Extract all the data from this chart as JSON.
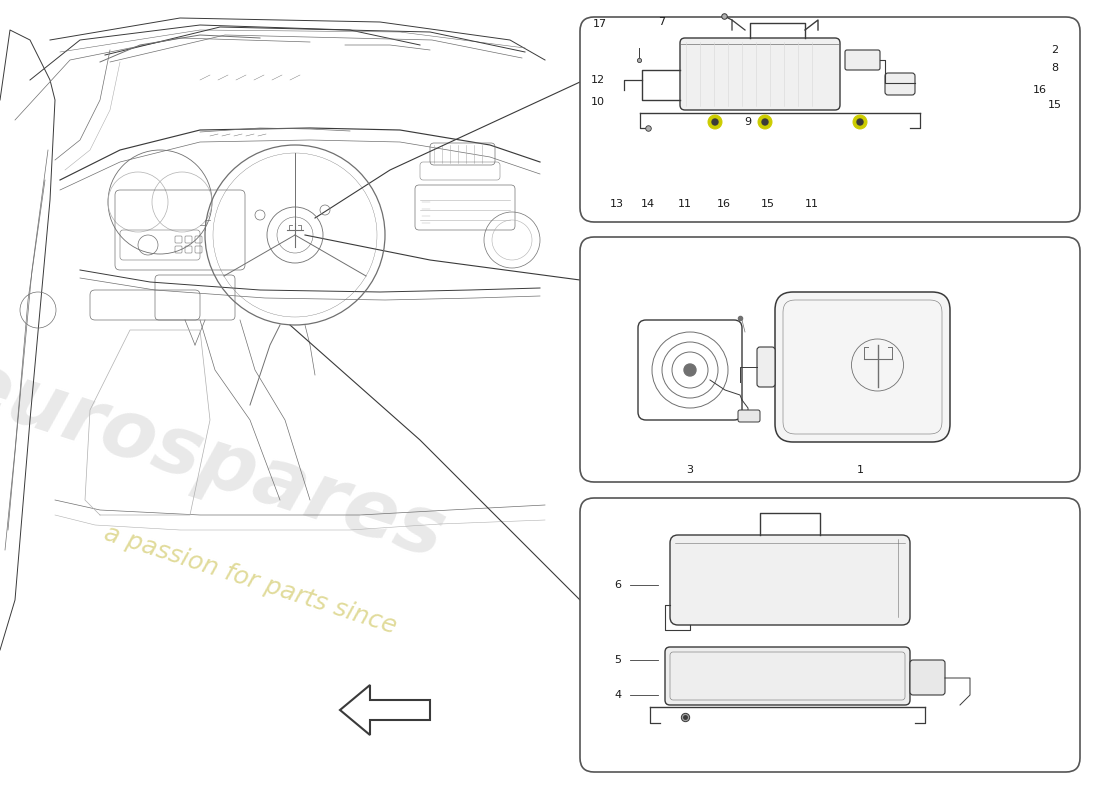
{
  "bg": "#ffffff",
  "lc": "#3a3a3a",
  "lc_light": "#b0b0b0",
  "lc_mid": "#707070",
  "yellow": "#cccc00",
  "watermark1": "eurospares",
  "watermark2": "a passion for parts since",
  "wm1_color": "#e0e0e0",
  "wm2_color": "#d4cc70",
  "wm_alpha": 0.7,
  "box_edge": "#555555",
  "num_color": "#1a1a1a",
  "fs_num": 8,
  "fs_wm1": 58,
  "fs_wm2": 18
}
